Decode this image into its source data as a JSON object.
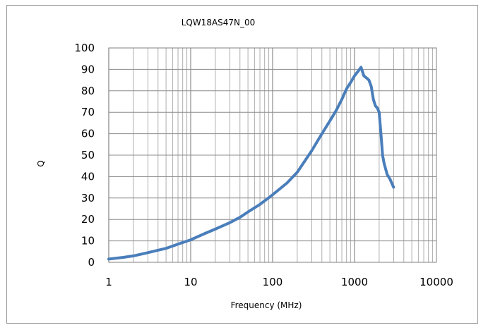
{
  "chart_data": {
    "type": "line",
    "title": "LQW18AS47N_00",
    "xlabel": "Frequency (MHz)",
    "ylabel": "Q",
    "xscale": "log",
    "xlim": [
      1,
      10000
    ],
    "ylim": [
      0,
      100
    ],
    "x_tick_labels": [
      "1",
      "10",
      "100",
      "1000",
      "10000"
    ],
    "y_tick_labels": [
      "0",
      "10",
      "20",
      "30",
      "40",
      "50",
      "60",
      "70",
      "80",
      "90",
      "100"
    ],
    "grid": true,
    "legend": "none",
    "series": [
      {
        "color": "#4a7ebb",
        "x": [
          1,
          1.5,
          2,
          3,
          5,
          7,
          10,
          15,
          20,
          30,
          40,
          50,
          70,
          100,
          150,
          200,
          300,
          400,
          500,
          600,
          700,
          800,
          900,
          1000,
          1100,
          1200,
          1300,
          1400,
          1500,
          1600,
          1700,
          1800,
          1900,
          2000,
          2100,
          2200,
          2300,
          2500,
          2700,
          3000
        ],
        "y": [
          1.5,
          2.3,
          3,
          4.5,
          6.5,
          8.5,
          10.5,
          13.5,
          15.5,
          18.5,
          21,
          23.5,
          27,
          31.5,
          37,
          42,
          52,
          60,
          66,
          71,
          76,
          81,
          84,
          87,
          89,
          91,
          87,
          86,
          85,
          82,
          76,
          73,
          72,
          70,
          60,
          50,
          46,
          41,
          39,
          35
        ]
      }
    ]
  }
}
